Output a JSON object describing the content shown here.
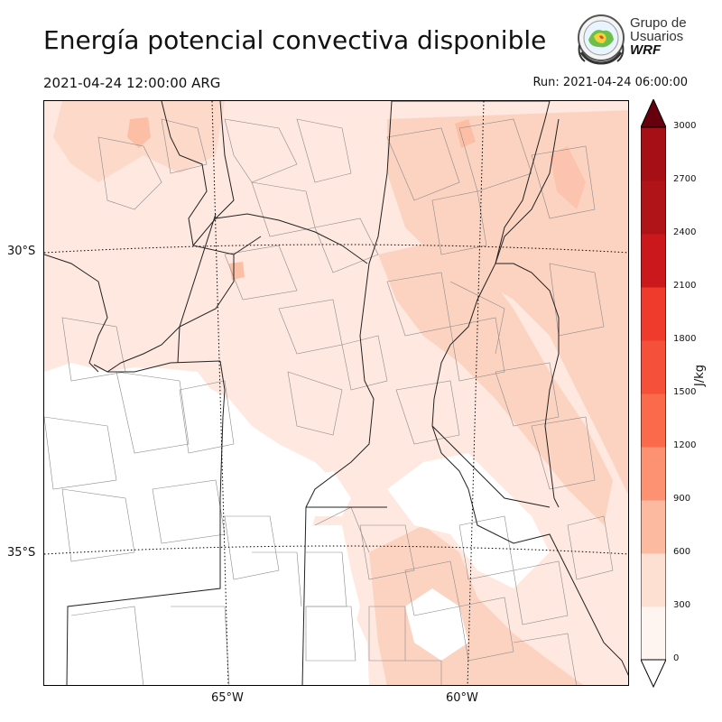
{
  "header": {
    "title": "Energía potencial convectiva disponible",
    "valid_time": "2021-04-24 12:00:00 ARG",
    "run_time": "Run: 2021-04-24 06:00:00"
  },
  "logo": {
    "line1": "Grupo de",
    "line2": "Usuarios",
    "line3": "WRF"
  },
  "map": {
    "variable": "CAPE",
    "lat_labels": [
      "30°S",
      "35°S"
    ],
    "lon_labels": [
      "65°W",
      "60°W"
    ],
    "field_colors": {
      "background": "#ffffff",
      "level_1": "#fee8df",
      "level_2": "#fcd3c1",
      "level_3": "#fcbea5",
      "boundary": "#000000",
      "department_lines": "#777777",
      "graticule": "#000000"
    }
  },
  "colorbar": {
    "unit": "J/kg",
    "ticks": [
      "0",
      "300",
      "600",
      "900",
      "1200",
      "1500",
      "1800",
      "2100",
      "2400",
      "2700",
      "3000"
    ],
    "colors": [
      "#fff5f0",
      "#fee0d2",
      "#fcbba1",
      "#fc9272",
      "#fb6a4a",
      "#f4503a",
      "#ef3b2c",
      "#cb181d",
      "#b01318",
      "#a50f15",
      "#67000d"
    ],
    "extend": "both"
  }
}
